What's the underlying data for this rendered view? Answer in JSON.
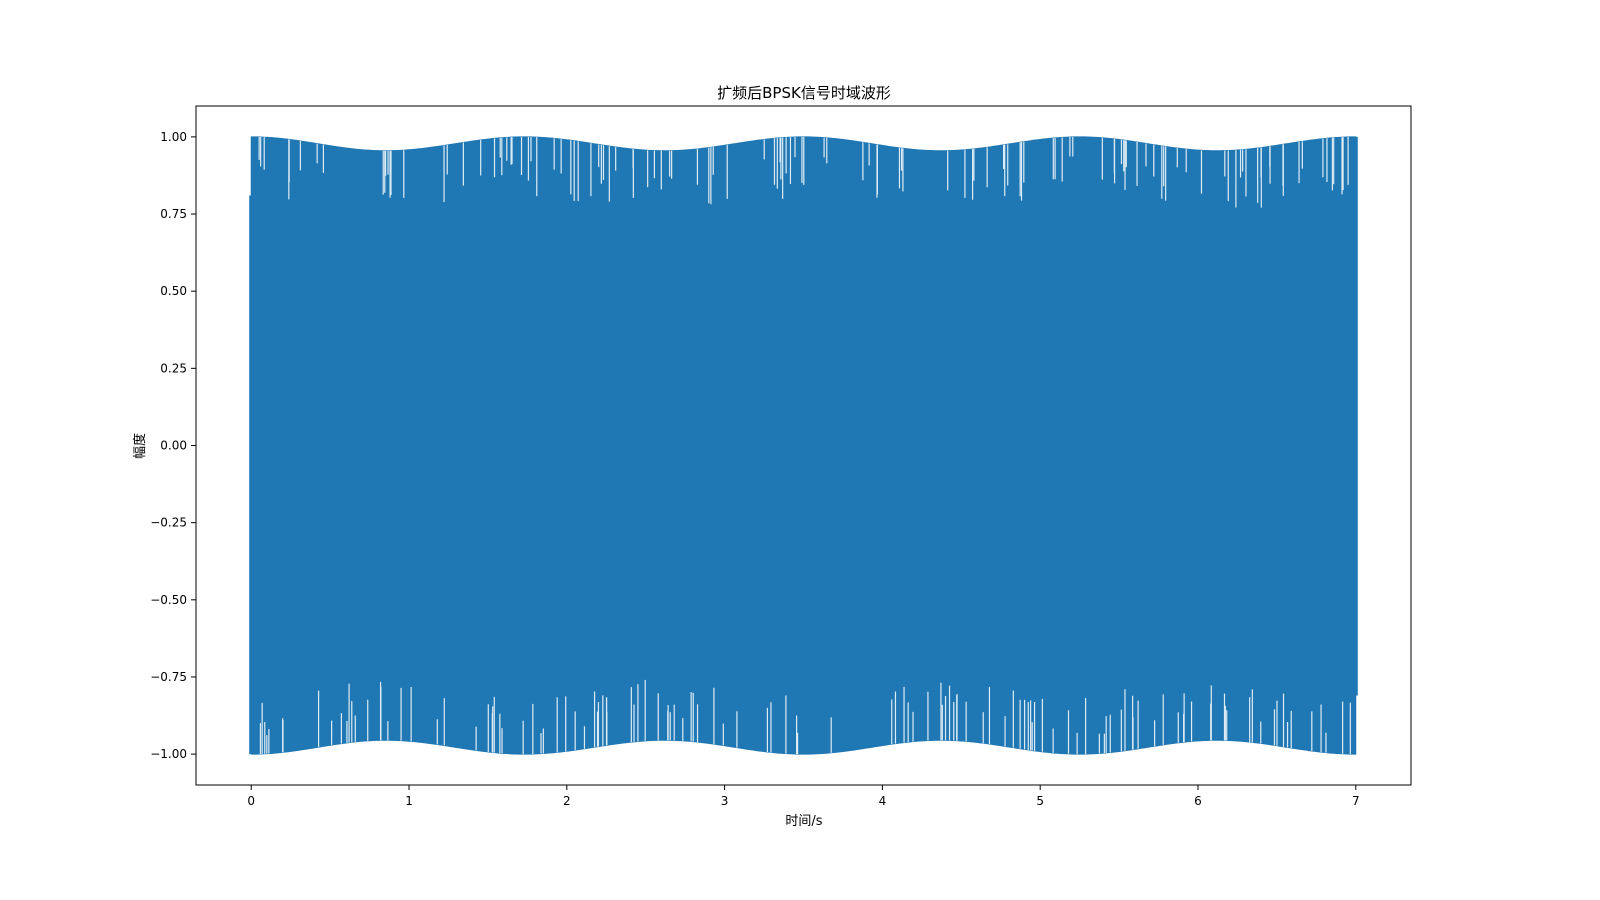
{
  "chart_data": {
    "type": "line",
    "title": "扩频后BPSK信号时域波形",
    "xlabel": "时间/s",
    "ylabel": "幅度",
    "xlim": [
      -0.35,
      7.35
    ],
    "ylim": [
      -1.1,
      1.1
    ],
    "xticks": [
      0,
      1,
      2,
      3,
      4,
      5,
      6,
      7
    ],
    "xtick_labels": [
      "0",
      "1",
      "2",
      "3",
      "4",
      "5",
      "6",
      "7"
    ],
    "yticks": [
      1.0,
      0.75,
      0.5,
      0.25,
      0.0,
      -0.25,
      -0.5,
      -0.75,
      -1.0
    ],
    "ytick_labels": [
      "1.00",
      "0.75",
      "0.50",
      "0.25",
      "0.00",
      "−0.25",
      "−0.50",
      "−0.75",
      "−1.00"
    ],
    "grid": false,
    "legend": "none",
    "series": [
      {
        "color": "#1f77b4",
        "x_range": [
          0,
          7
        ],
        "amplitude_range": [
          -1.0,
          1.0
        ],
        "envelope": {
          "x": [
            0,
            0.85,
            1.73,
            2.62,
            3.5,
            4.37,
            5.25,
            6.12,
            7.0
          ],
          "upper": [
            1.0,
            0.955,
            1.0,
            0.955,
            1.0,
            0.955,
            1.0,
            0.955,
            1.0
          ],
          "lower": [
            -1.0,
            -0.955,
            -1.0,
            -0.955,
            -1.0,
            -0.955,
            -1.0,
            -0.955,
            -1.0
          ]
        },
        "start_value": 0.81,
        "end_value": -0.81
      }
    ]
  }
}
